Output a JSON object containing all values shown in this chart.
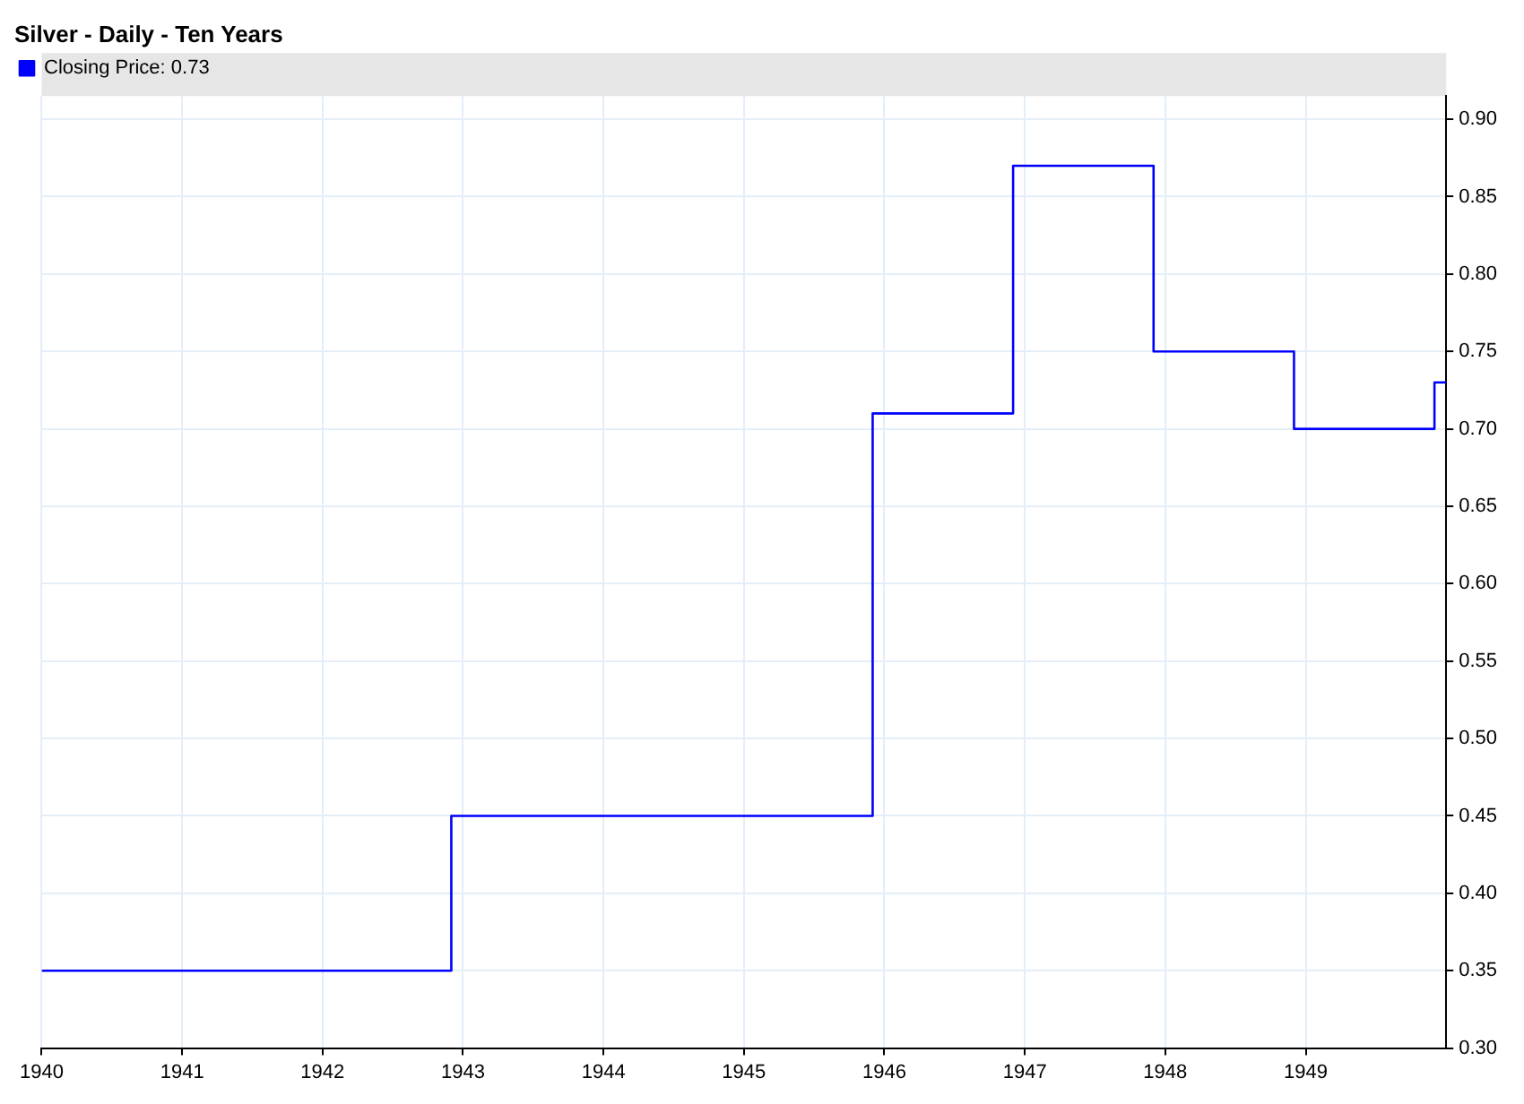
{
  "chart_data": {
    "type": "step",
    "title": "Silver - Daily - Ten Years",
    "x": [
      "1940-01-01",
      "1942-12-01",
      "1945-12-01",
      "1946-12-01",
      "1947-12-01",
      "1948-12-01",
      "1949-12-01",
      "1950-01-01"
    ],
    "series": [
      {
        "name": "Closing Price: 0.73",
        "color": "#0000ff",
        "values": [
          0.35,
          0.45,
          0.71,
          0.87,
          0.75,
          0.7,
          0.73,
          0.73
        ]
      }
    ],
    "xlim": [
      "1940-01-01",
      "1950-01-01"
    ],
    "xticks": [
      "1940",
      "1941",
      "1942",
      "1943",
      "1944",
      "1945",
      "1946",
      "1947",
      "1948",
      "1949"
    ],
    "ylim": [
      0.3,
      0.915
    ],
    "yticks": [
      {
        "value": 0.3,
        "label": "0.30"
      },
      {
        "value": 0.35,
        "label": "0.35"
      },
      {
        "value": 0.4,
        "label": "0.40"
      },
      {
        "value": 0.45,
        "label": "0.45"
      },
      {
        "value": 0.5,
        "label": "0.50"
      },
      {
        "value": 0.55,
        "label": "0.55"
      },
      {
        "value": 0.6,
        "label": "0.60"
      },
      {
        "value": 0.65,
        "label": "0.65"
      },
      {
        "value": 0.7,
        "label": "0.70"
      },
      {
        "value": 0.75,
        "label": "0.75"
      },
      {
        "value": 0.8,
        "label": "0.80"
      },
      {
        "value": 0.85,
        "label": "0.85"
      },
      {
        "value": 0.9,
        "label": "0.90"
      }
    ],
    "grid": true,
    "legend": "top left",
    "line_style": "solid",
    "marker": "none"
  }
}
